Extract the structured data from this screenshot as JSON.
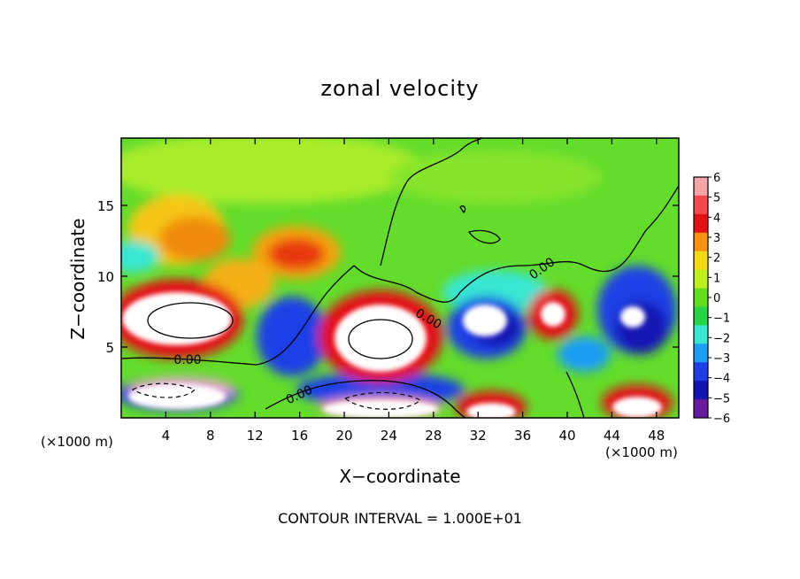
{
  "chart_data": {
    "type": "heatmap",
    "title": "zonal velocity",
    "xlabel": "X−coordinate",
    "ylabel": "Z−coordinate",
    "x_multiplier_label": "(×1000 m)",
    "x_ticks": [
      "4",
      "8",
      "12",
      "16",
      "20",
      "24",
      "28",
      "32",
      "36",
      "40",
      "44",
      "48"
    ],
    "x_tick_values": [
      4,
      8,
      12,
      16,
      20,
      24,
      28,
      32,
      36,
      40,
      44,
      48
    ],
    "y_ticks": [
      "5",
      "10",
      "15"
    ],
    "y_tick_values": [
      5,
      10,
      15
    ],
    "xlim": [
      0,
      50
    ],
    "ylim": [
      0,
      19.75
    ],
    "colorbar": {
      "labels": [
        "6",
        "5",
        "4",
        "3",
        "2",
        "1",
        "0",
        "−1",
        "−2",
        "−3",
        "−4",
        "−5",
        "−6"
      ],
      "colors": [
        "#f6a3a8",
        "#f6474b",
        "#e40f12",
        "#f59209",
        "#f5da12",
        "#bef11c",
        "#5ede1c",
        "#27d548",
        "#37e7d2",
        "#1d9df4",
        "#1e3fe6",
        "#1414b3",
        "#6a1aa0"
      ]
    },
    "contour_labels": [
      "0.00",
      "0.00",
      "0.00",
      "0.00"
    ],
    "footer": "CONTOUR INTERVAL = 1.000E+01",
    "colors": {
      "background_field": "#63dc2b",
      "white_saturation": "#ffffff"
    }
  }
}
